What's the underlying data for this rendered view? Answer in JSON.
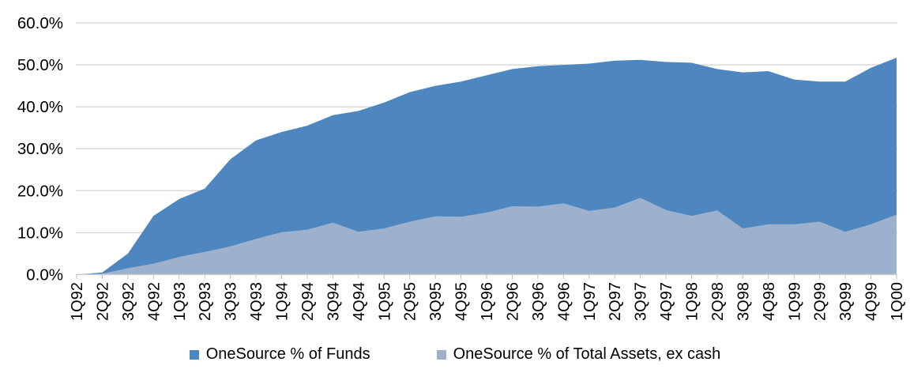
{
  "chart_data": {
    "type": "area",
    "title": "",
    "xlabel": "",
    "ylabel": "",
    "categories": [
      "1Q92",
      "2Q92",
      "3Q92",
      "4Q92",
      "1Q93",
      "2Q93",
      "3Q93",
      "4Q93",
      "1Q94",
      "2Q94",
      "3Q94",
      "4Q94",
      "1Q95",
      "2Q95",
      "3Q95",
      "4Q95",
      "1Q96",
      "2Q96",
      "3Q96",
      "4Q96",
      "1Q97",
      "2Q97",
      "3Q97",
      "4Q97",
      "1Q98",
      "2Q98",
      "3Q98",
      "4Q98",
      "1Q99",
      "2Q99",
      "3Q99",
      "4Q99",
      "1Q00"
    ],
    "series": [
      {
        "name": "OneSource % of Funds",
        "color": "#4E86C0",
        "values": [
          0,
          0.5,
          5,
          14,
          18,
          20.5,
          27.5,
          32,
          34,
          35.5,
          38,
          39,
          41,
          43.5,
          45,
          46,
          47.5,
          49,
          49.7,
          50,
          50.3,
          51,
          51.2,
          50.7,
          50.5,
          49,
          48.2,
          48.5,
          46.5,
          46,
          46,
          49.3,
          51.7
        ]
      },
      {
        "name": "OneSource % of Total Assets, ex cash",
        "color": "#9DB1CD",
        "values": [
          0,
          0.2,
          1.5,
          2.6,
          4.2,
          5.4,
          6.7,
          8.5,
          10.1,
          10.7,
          12.4,
          10.2,
          11,
          12.6,
          13.9,
          13.8,
          14.8,
          16.3,
          16.2,
          17,
          15.2,
          16,
          18.3,
          15.4,
          14,
          15.3,
          11,
          12,
          12,
          12.6,
          10.2,
          12,
          14.3
        ]
      }
    ],
    "yticks": [
      "0.0%",
      "10.0%",
      "20.0%",
      "30.0%",
      "40.0%",
      "50.0%",
      "60.0%"
    ],
    "ytick_values": [
      0,
      10,
      20,
      30,
      40,
      50,
      60
    ],
    "ylim": [
      0,
      60
    ],
    "grid": true,
    "legend_position": "bottom",
    "gridline_color": "#D9D9D9",
    "axis_color": "#CCCCCC",
    "tick_color": "#BFBFBF",
    "label_color": "#000000"
  }
}
